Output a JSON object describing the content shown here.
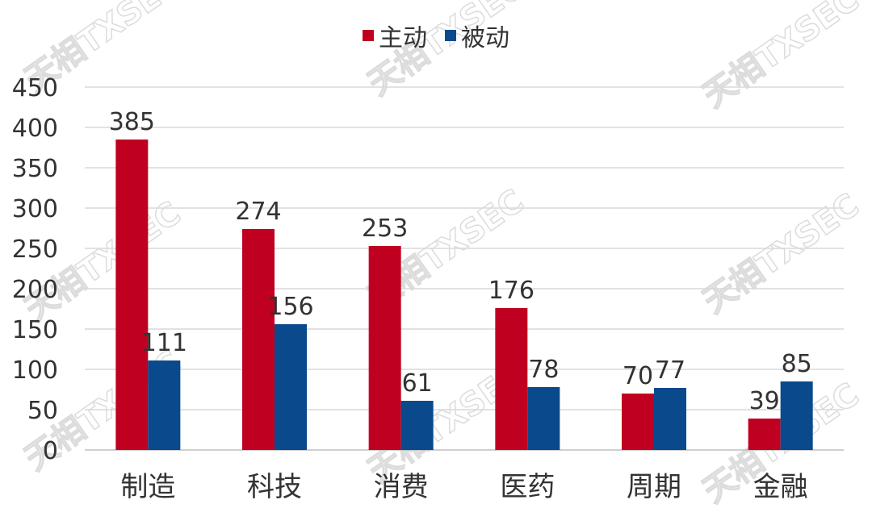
{
  "chart_data": {
    "type": "bar",
    "categories": [
      "制造",
      "科技",
      "消费",
      "医药",
      "周期",
      "金融"
    ],
    "series": [
      {
        "name": "主动",
        "values": [
          385,
          274,
          253,
          176,
          70,
          39
        ],
        "color": "#C00020"
      },
      {
        "name": "被动",
        "values": [
          111,
          156,
          61,
          78,
          77,
          85
        ],
        "color": "#0A4A8C"
      }
    ],
    "ylim": [
      0,
      450
    ],
    "yticks": [
      0,
      50,
      100,
      150,
      200,
      250,
      300,
      350,
      400,
      450
    ],
    "grid": true,
    "legend_position": "top-center",
    "watermark": "天相TXSEC"
  }
}
